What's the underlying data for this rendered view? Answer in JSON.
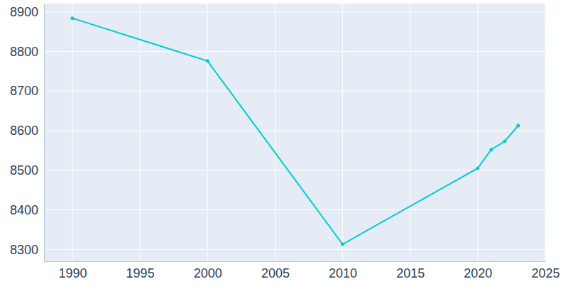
{
  "chart_data": {
    "type": "line",
    "x": [
      1990,
      2000,
      2010,
      2020,
      2021,
      2022,
      2023
    ],
    "values": [
      8884,
      8776,
      8313,
      8505,
      8552,
      8573,
      8613
    ],
    "color": "#00cdcd",
    "marker": "circle",
    "xlim": [
      1987.9,
      2025
    ],
    "xticks": [
      1990,
      1995,
      2000,
      2005,
      2010,
      2015,
      2020,
      2025
    ],
    "ylim": [
      8270,
      8921
    ],
    "yticks": [
      8300,
      8400,
      8500,
      8600,
      8700,
      8800,
      8900
    ],
    "grid": true
  }
}
